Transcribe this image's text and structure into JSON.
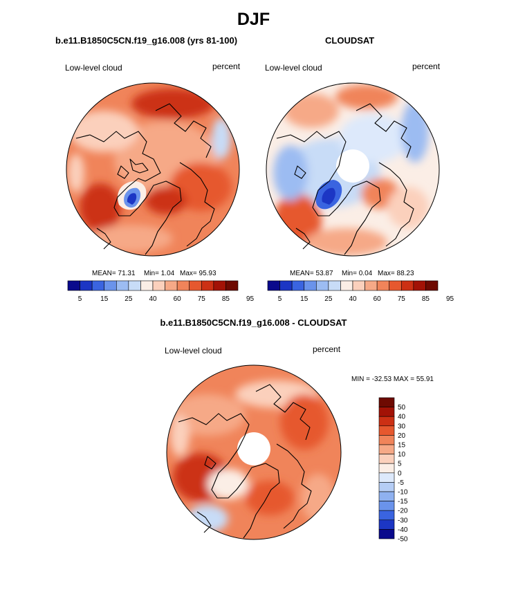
{
  "page": {
    "title": "DJF",
    "left_title": "b.e11.B1850C5CN.f19_g16.008 (yrs 81-100)",
    "right_title": "CLOUDSAT",
    "diff_title": "b.e11.B1850C5CN.f19_g16.008 - CLOUDSAT"
  },
  "colors": {
    "map_scale": [
      "#0a0a8c",
      "#1c36c4",
      "#3a64e0",
      "#6a93eb",
      "#9cbcf2",
      "#c8dcf7",
      "#fbeee6",
      "#fbd0bc",
      "#f6a987",
      "#f0845a",
      "#e6582e",
      "#cc3014",
      "#a21206",
      "#6e0a02"
    ],
    "diff_scale": [
      "#0a0a8c",
      "#1c36c4",
      "#3a64e0",
      "#6a93eb",
      "#8fb1f0",
      "#b5cdf5",
      "#dde9fb",
      "#fbeee6",
      "#fbd0bc",
      "#f6a987",
      "#f0845a",
      "#e6582e",
      "#cc3014",
      "#a21206",
      "#6e0a02"
    ],
    "land_outline": "#000000"
  },
  "chart_data": [
    {
      "type": "heatmap",
      "name": "model",
      "projection": "north polar stereographic",
      "left_label": "Low-level cloud",
      "right_label": "percent",
      "stats": {
        "mean": "MEAN=  71.31",
        "min": "Min=   1.04",
        "max": "Max=  95.93"
      },
      "stats_values": {
        "mean": 71.31,
        "min": 1.04,
        "max": 95.93
      },
      "colorbar_levels": [
        5,
        10,
        15,
        20,
        25,
        30,
        40,
        50,
        60,
        70,
        75,
        80,
        85,
        90,
        95
      ],
      "colorbar_ticks": [
        "5",
        "15",
        "25",
        "40",
        "60",
        "75",
        "85",
        "95"
      ],
      "polar_gap": false
    },
    {
      "type": "heatmap",
      "name": "observations",
      "projection": "north polar stereographic",
      "left_label": "Low-level cloud",
      "right_label": "percent",
      "stats": {
        "mean": "MEAN=  53.87",
        "min": "Min=   0.04",
        "max": "Max=  88.23"
      },
      "stats_values": {
        "mean": 53.87,
        "min": 0.04,
        "max": 88.23
      },
      "colorbar_levels": [
        5,
        10,
        15,
        20,
        25,
        30,
        40,
        50,
        60,
        70,
        75,
        80,
        85,
        90,
        95
      ],
      "colorbar_ticks": [
        "5",
        "15",
        "25",
        "40",
        "60",
        "75",
        "85",
        "95"
      ],
      "polar_gap": true
    },
    {
      "type": "heatmap",
      "name": "difference",
      "projection": "north polar stereographic",
      "left_label": "Low-level cloud",
      "right_label": "percent",
      "stats": {
        "summary": "MIN = -32.53 MAX =  55.91"
      },
      "stats_values": {
        "min": -32.53,
        "max": 55.91
      },
      "colorbar_levels": [
        -50,
        -40,
        -30,
        -20,
        -15,
        -10,
        -5,
        0,
        5,
        10,
        15,
        20,
        30,
        40,
        50
      ],
      "colorbar_ticks": [
        "50",
        "40",
        "30",
        "20",
        "15",
        "10",
        "5",
        "0",
        "-5",
        "-10",
        "-15",
        "-20",
        "-30",
        "-40",
        "-50"
      ],
      "polar_gap": true
    }
  ]
}
